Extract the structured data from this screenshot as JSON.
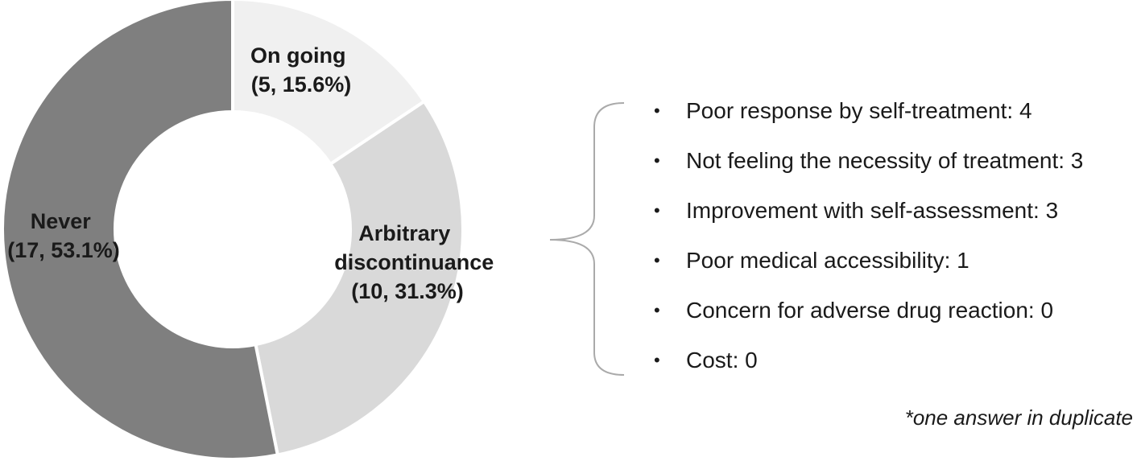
{
  "chart_data": {
    "type": "pie",
    "style": "donut",
    "title": "",
    "slices": [
      {
        "name": "On going",
        "value": 5,
        "percent": "15.6%",
        "value_label": "(5, 15.6%)",
        "color": "#f0f0f0"
      },
      {
        "name": "Arbitrary discontinuance",
        "name_lines": [
          "Arbitrary",
          "discontinuance"
        ],
        "value": 10,
        "percent": "31.3%",
        "value_label": "(10, 31.3%)",
        "color": "#d9d9d9"
      },
      {
        "name": "Never",
        "value": 17,
        "percent": "53.1%",
        "value_label": "(17, 53.1%)",
        "color": "#7f7f7f"
      }
    ],
    "start_angle": "top, clockwise",
    "legend": "none"
  },
  "reasons": {
    "bullet": "•",
    "items": [
      {
        "text": "Poor response by self-treatment: 4",
        "count": 4
      },
      {
        "text": "Not feeling the necessity of treatment: 3",
        "count": 3
      },
      {
        "text": "Improvement with self-assessment: 3",
        "count": 3
      },
      {
        "text": "Poor medical accessibility: 1",
        "count": 1
      },
      {
        "text": "Concern for adverse drug reaction: 0",
        "count": 0
      },
      {
        "text": "Cost: 0",
        "count": 0
      }
    ]
  },
  "footnote": "*one answer in duplicate",
  "colors": {
    "text": "#1a1a1a",
    "brace": "#aaaaaa",
    "slice_border": "#ffffff"
  }
}
